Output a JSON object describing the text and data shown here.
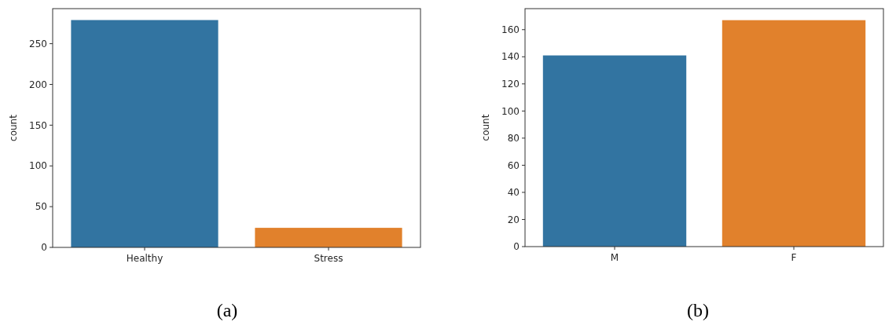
{
  "chart_data": [
    {
      "type": "bar",
      "title": "(a)",
      "ylabel": "count",
      "categories": [
        "Healthy",
        "Stress"
      ],
      "values": [
        279,
        24
      ],
      "colors": [
        "#3274a1",
        "#e1812c"
      ],
      "ylim": [
        0,
        293
      ],
      "yticks": [
        0,
        50,
        100,
        150,
        200,
        250
      ]
    },
    {
      "type": "bar",
      "title": "(b)",
      "ylabel": "count",
      "categories": [
        "M",
        "F"
      ],
      "values": [
        141,
        167
      ],
      "colors": [
        "#3274a1",
        "#e1812c"
      ],
      "ylim": [
        0,
        175.5
      ],
      "yticks": [
        0,
        20,
        40,
        60,
        80,
        100,
        120,
        140,
        160
      ]
    }
  ]
}
